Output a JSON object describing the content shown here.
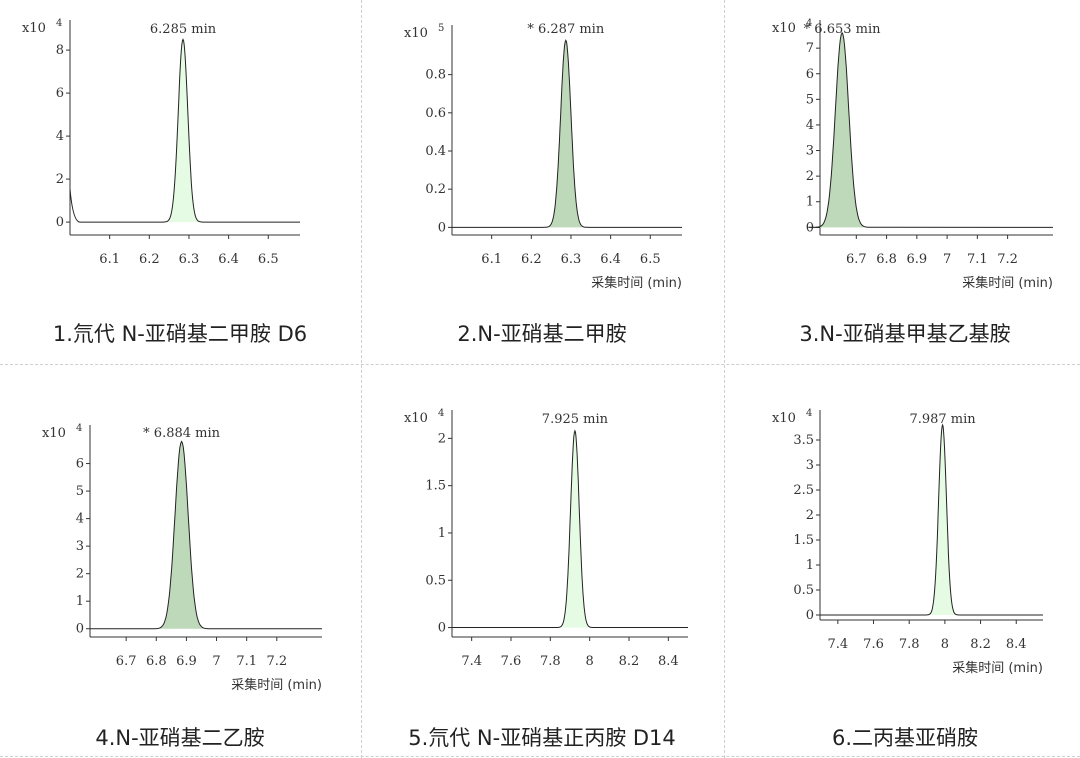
{
  "panels": [
    {
      "caption": "1.氘代 N-亚硝基二甲胺  D6",
      "chart_data": {
        "type": "line",
        "exponent": "4",
        "multiplier_prefix": "x10",
        "peak_label": "6.285 min",
        "peak_x": 6.285,
        "peak_y": 8.5,
        "peak_sigma": 0.012,
        "fill": "#e6fbe3",
        "xlim": [
          6.0,
          6.58
        ],
        "ylim": [
          -0.6,
          9.4
        ],
        "x_ticks": [
          6.1,
          6.2,
          6.3,
          6.4,
          6.5
        ],
        "x_tick_labels": [
          "6.1",
          "6.2",
          "6.3",
          "6.4",
          "6.5"
        ],
        "y_ticks": [
          0,
          2,
          4,
          6,
          8
        ],
        "y_tick_labels": [
          "0",
          "2",
          "4",
          "6",
          "8"
        ],
        "xlabel": "",
        "start_spike": true
      }
    },
    {
      "caption": "2.N-亚硝基二甲胺",
      "chart_data": {
        "type": "line",
        "exponent": "5",
        "multiplier_prefix": "x10",
        "peak_label": "* 6.287 min",
        "peak_x": 6.287,
        "peak_y": 0.98,
        "peak_sigma": 0.013,
        "fill": "#bed9ba",
        "xlim": [
          6.0,
          6.58
        ],
        "ylim": [
          -0.04,
          1.06
        ],
        "x_ticks": [
          6.1,
          6.2,
          6.3,
          6.4,
          6.5
        ],
        "x_tick_labels": [
          "6.1",
          "6.2",
          "6.3",
          "6.4",
          "6.5"
        ],
        "y_ticks": [
          0,
          0.2,
          0.4,
          0.6,
          0.8
        ],
        "y_tick_labels": [
          "0",
          "0.2",
          "0.4",
          "0.6",
          "0.8"
        ],
        "xlabel": "采集时间 (min)",
        "start_spike": false
      }
    },
    {
      "caption": "3.N-亚硝基甲基乙基胺",
      "chart_data": {
        "type": "line",
        "exponent": "4",
        "multiplier_prefix": "x10",
        "peak_label": "* 6.653 min",
        "peak_x": 6.653,
        "peak_y": 7.6,
        "peak_sigma": 0.022,
        "fill": "#bed9ba",
        "xlim": [
          6.58,
          7.35
        ],
        "ylim": [
          -0.3,
          8.1
        ],
        "x_ticks": [
          6.7,
          6.8,
          6.9,
          7.0,
          7.1,
          7.2
        ],
        "x_tick_labels": [
          "6.7",
          "6.8",
          "6.9",
          "7",
          "7.1",
          "7.2"
        ],
        "y_ticks": [
          0,
          1,
          2,
          3,
          4,
          5,
          6,
          7
        ],
        "y_tick_labels": [
          "0",
          "1",
          "2",
          "3",
          "4",
          "5",
          "6",
          "7"
        ],
        "xlabel": "采集时间 (min)",
        "start_spike": false
      }
    },
    {
      "caption": "4.N-亚硝基二乙胺",
      "chart_data": {
        "type": "line",
        "exponent": "4",
        "multiplier_prefix": "x10",
        "peak_label": "* 6.884 min",
        "peak_x": 6.884,
        "peak_y": 6.8,
        "peak_sigma": 0.022,
        "fill": "#bed9ba",
        "xlim": [
          6.58,
          7.35
        ],
        "ylim": [
          -0.3,
          7.4
        ],
        "x_ticks": [
          6.7,
          6.8,
          6.9,
          7.0,
          7.1,
          7.2
        ],
        "x_tick_labels": [
          "6.7",
          "6.8",
          "6.9",
          "7",
          "7.1",
          "7.2"
        ],
        "y_ticks": [
          0,
          1,
          2,
          3,
          4,
          5,
          6
        ],
        "y_tick_labels": [
          "0",
          "1",
          "2",
          "3",
          "4",
          "5",
          "6"
        ],
        "xlabel": "采集时间 (min)",
        "start_spike": false
      }
    },
    {
      "caption": "5.氘代 N-亚硝基正丙胺  D14",
      "chart_data": {
        "type": "line",
        "exponent": "4",
        "multiplier_prefix": "x10",
        "peak_label": "7.925 min",
        "peak_x": 7.925,
        "peak_y": 2.08,
        "peak_sigma": 0.022,
        "fill": "#e6fbe3",
        "xlim": [
          7.3,
          8.5
        ],
        "ylim": [
          -0.1,
          2.3
        ],
        "x_ticks": [
          7.4,
          7.6,
          7.8,
          8.0,
          8.2,
          8.4
        ],
        "x_tick_labels": [
          "7.4",
          "7.6",
          "7.8",
          "8",
          "8.2",
          "8.4"
        ],
        "y_ticks": [
          0,
          0.5,
          1,
          1.5,
          2
        ],
        "y_tick_labels": [
          "0",
          "0.5",
          "1",
          "1.5",
          "2"
        ],
        "xlabel": "",
        "start_spike": false
      }
    },
    {
      "caption": "6.二丙基亚硝胺",
      "chart_data": {
        "type": "line",
        "exponent": "4",
        "multiplier_prefix": "x10",
        "peak_label": "7.987 min",
        "peak_x": 7.987,
        "peak_y": 3.8,
        "peak_sigma": 0.022,
        "fill": "#e6fbe3",
        "xlim": [
          7.3,
          8.55
        ],
        "ylim": [
          -0.1,
          4.1
        ],
        "x_ticks": [
          7.4,
          7.6,
          7.8,
          8.0,
          8.2,
          8.4
        ],
        "x_tick_labels": [
          "7.4",
          "7.6",
          "7.8",
          "8",
          "8.2",
          "8.4"
        ],
        "y_ticks": [
          0,
          0.5,
          1,
          1.5,
          2,
          2.5,
          3,
          3.5
        ],
        "y_tick_labels": [
          "0",
          "0.5",
          "1",
          "1.5",
          "2",
          "2.5",
          "3",
          "3.5"
        ],
        "xlabel": "采集时间 (min)",
        "start_spike": false
      }
    }
  ]
}
